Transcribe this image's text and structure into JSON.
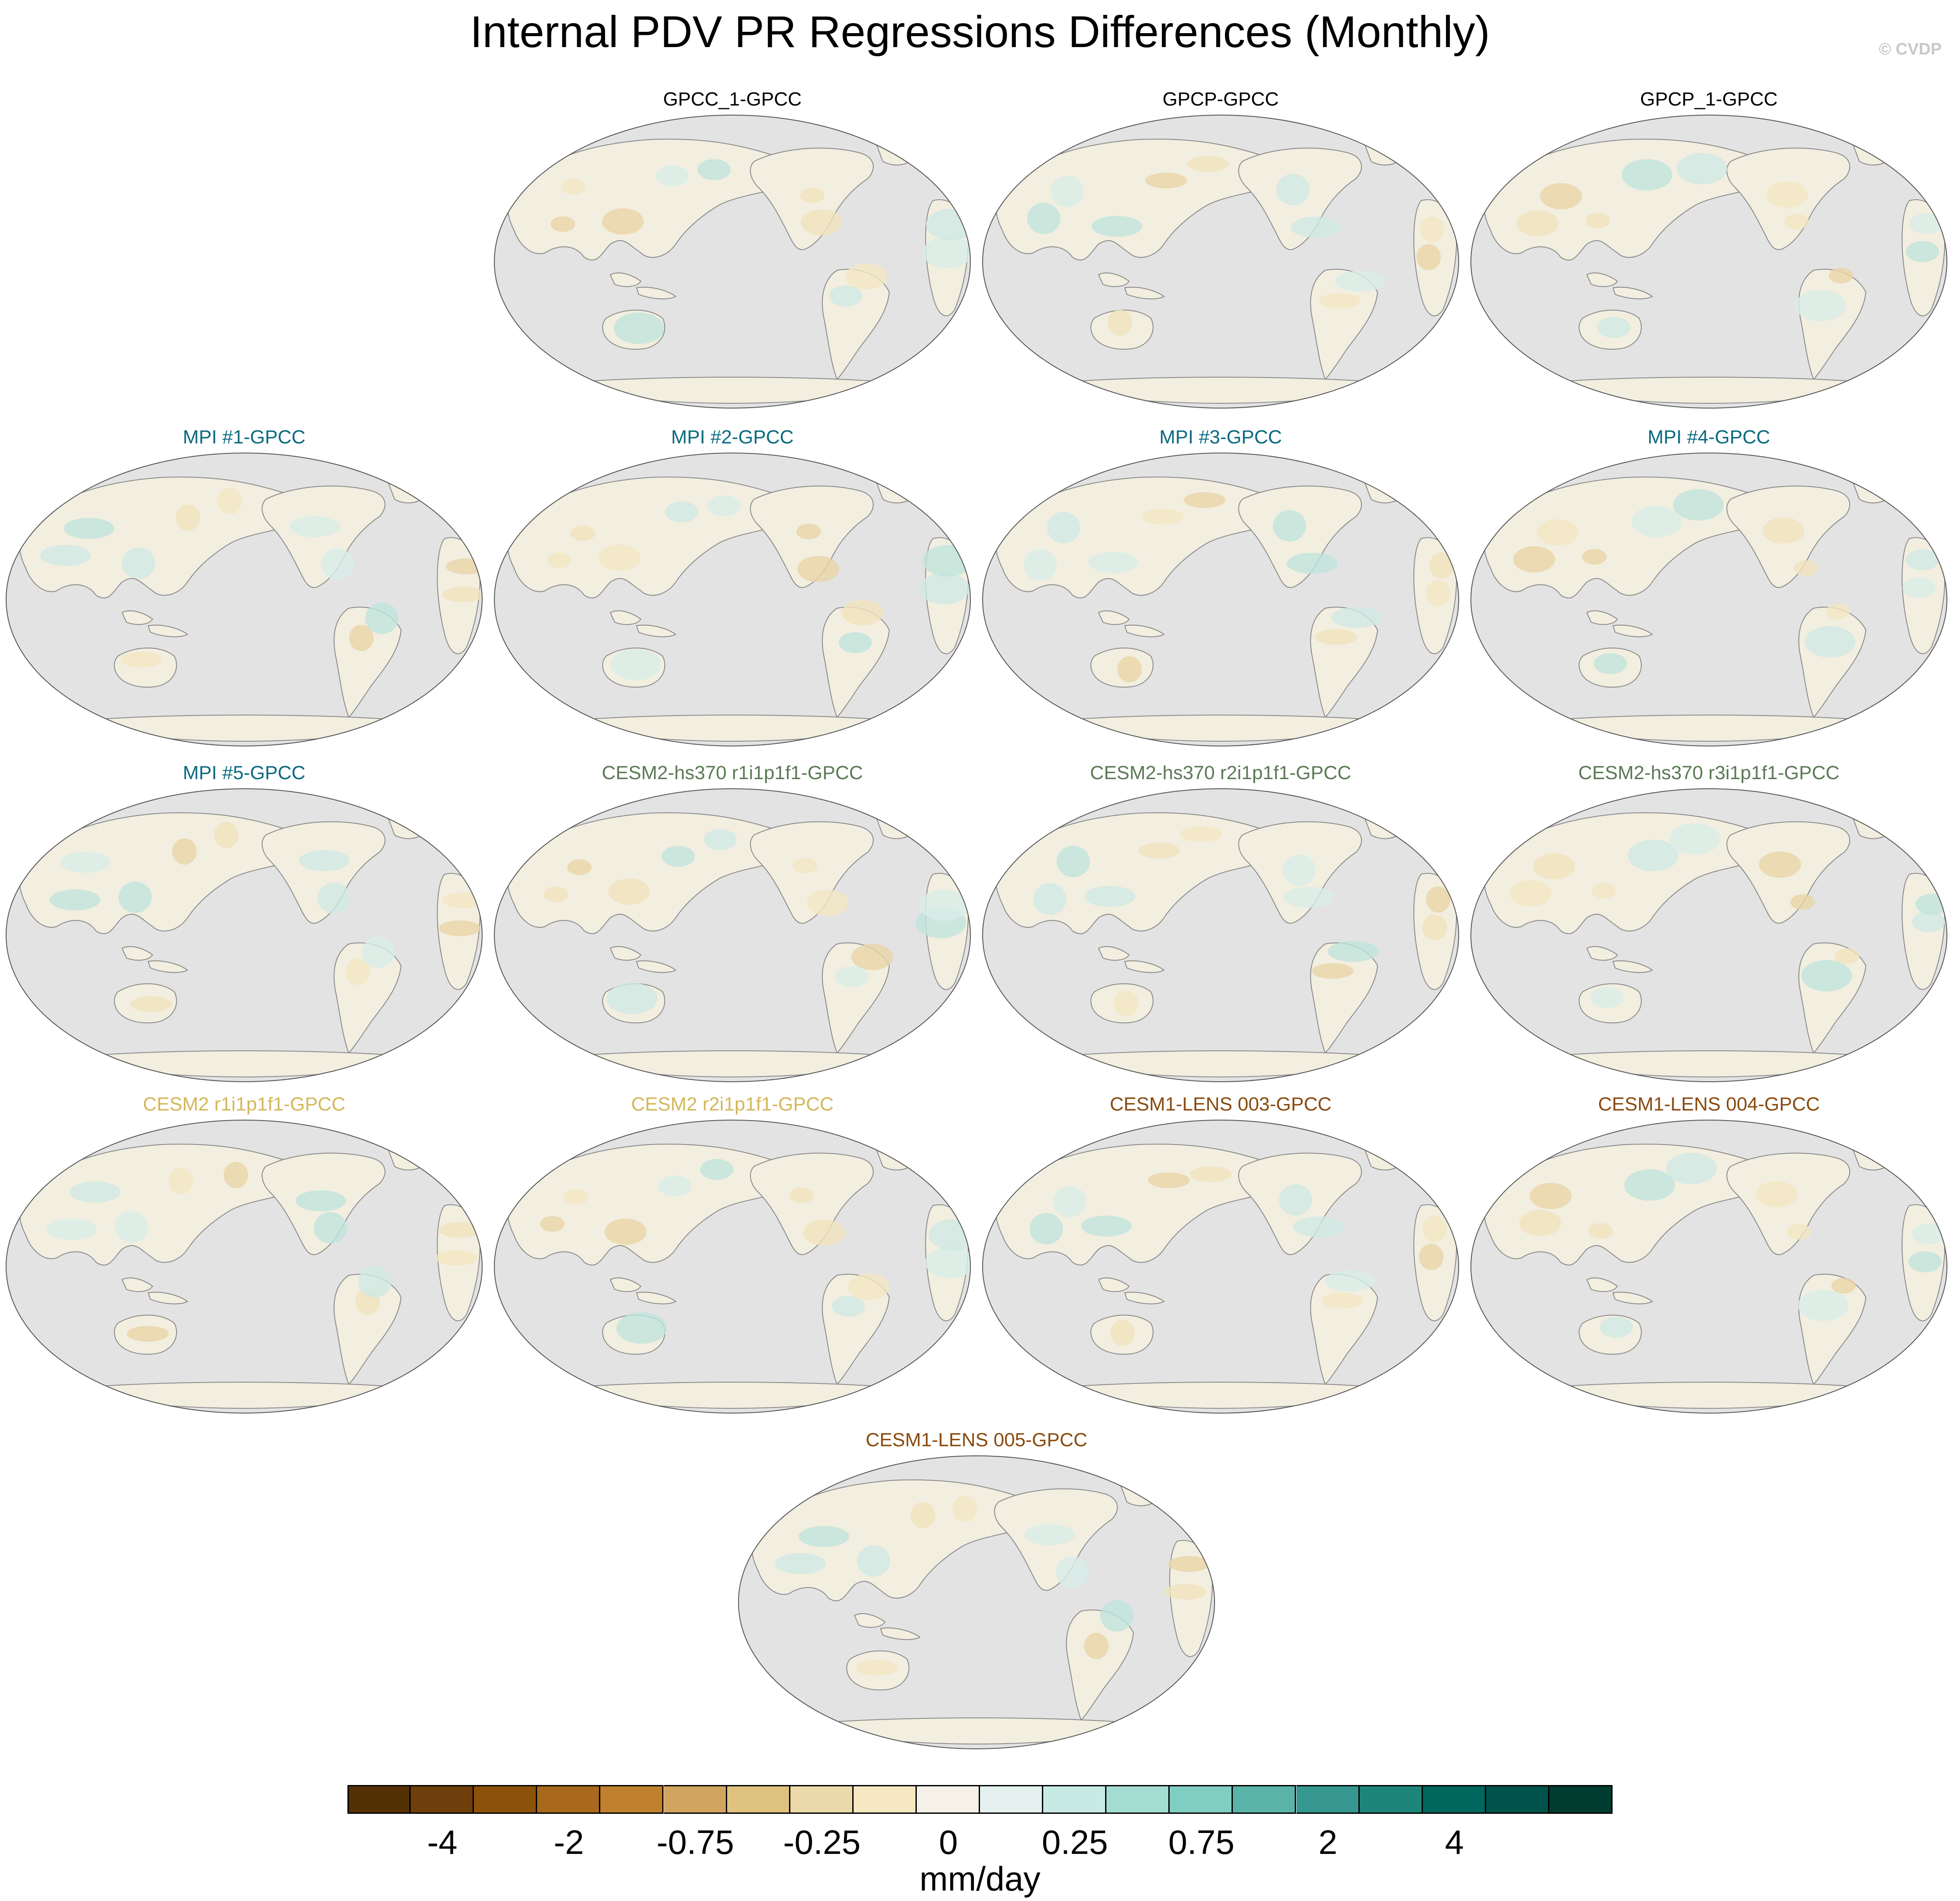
{
  "title": "Internal PDV PR Regressions Differences (Monthly)",
  "watermark": "© CVDP",
  "colors": {
    "title_black": "#000000",
    "mpi_blue": "#0a6a80",
    "cesm2_hs370_green": "#5b7a55",
    "cesm2_yellow": "#d4b75a",
    "cesm1_lens_brown": "#8a4a0f",
    "map_background": "#e3e3e3",
    "land_near_zero": "#f2eee0"
  },
  "panels": [
    {
      "title": "GPCC_1-GPCC",
      "color": "#000000"
    },
    {
      "title": "GPCP-GPCC",
      "color": "#000000"
    },
    {
      "title": "GPCP_1-GPCC",
      "color": "#000000"
    },
    {
      "title": "MPI #1-GPCC",
      "color": "#0a6a80"
    },
    {
      "title": "MPI #2-GPCC",
      "color": "#0a6a80"
    },
    {
      "title": "MPI #3-GPCC",
      "color": "#0a6a80"
    },
    {
      "title": "MPI #4-GPCC",
      "color": "#0a6a80"
    },
    {
      "title": "MPI #5-GPCC",
      "color": "#0a6a80"
    },
    {
      "title": "CESM2-hs370 r1i1p1f1-GPCC",
      "color": "#5b7a55"
    },
    {
      "title": "CESM2-hs370 r2i1p1f1-GPCC",
      "color": "#5b7a55"
    },
    {
      "title": "CESM2-hs370 r3i1p1f1-GPCC",
      "color": "#5b7a55"
    },
    {
      "title": "CESM2 r1i1p1f1-GPCC",
      "color": "#d4b75a"
    },
    {
      "title": "CESM2 r2i1p1f1-GPCC",
      "color": "#d4b75a"
    },
    {
      "title": "CESM1-LENS 003-GPCC",
      "color": "#8a4a0f"
    },
    {
      "title": "CESM1-LENS 004-GPCC",
      "color": "#8a4a0f"
    },
    {
      "title": "CESM1-LENS 005-GPCC",
      "color": "#8a4a0f"
    }
  ],
  "colorbar": {
    "units": "mm/day",
    "colors": [
      "#543005",
      "#6e3f0a",
      "#8c510a",
      "#a8691c",
      "#bf812d",
      "#d1a45f",
      "#dfc27d",
      "#ecd9a9",
      "#f6e8c3",
      "#f5f1e8",
      "#e4f1ee",
      "#c7eae5",
      "#a3ddd2",
      "#80cdc1",
      "#5ab4a8",
      "#35978f",
      "#1e857a",
      "#01665e",
      "#00524a",
      "#003c30"
    ],
    "labels": [
      "-4",
      "-2",
      "-0.75",
      "-0.25",
      "0",
      "0.25",
      "0.75",
      "2",
      "4"
    ],
    "label_boundaries": [
      2,
      4,
      6,
      8,
      10,
      12,
      14,
      16,
      18
    ]
  }
}
